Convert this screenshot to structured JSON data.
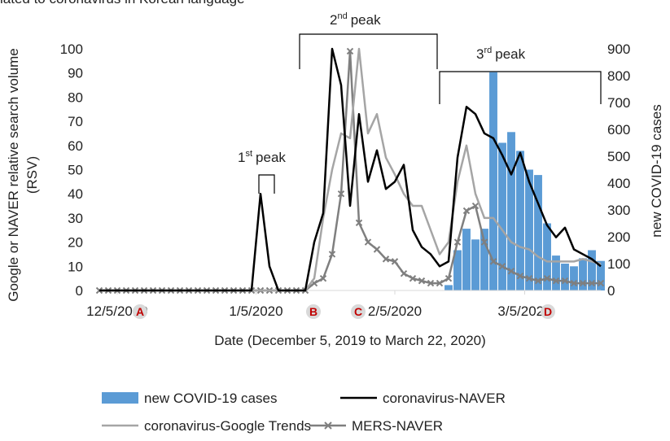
{
  "chart_data": {
    "type": "combo",
    "title": "lated to coronavirus in Korean language",
    "x_label": "Date (December 5, 2019 to March 22, 2020)",
    "y_label": [
      "Google or NAVER relative search volume",
      "(RSV)"
    ],
    "y2_label": "new COVID-19 cases",
    "x": [
      -4,
      -2,
      0,
      2,
      4,
      6,
      8,
      10,
      12,
      14,
      16,
      18,
      20,
      22,
      24,
      26,
      28,
      30,
      32,
      34,
      36,
      38,
      40,
      42,
      44,
      46,
      48,
      50,
      52,
      54,
      56,
      58,
      60,
      62,
      64,
      66,
      68,
      70,
      72,
      74,
      76,
      78,
      80,
      82,
      84,
      86,
      88,
      90,
      92,
      94,
      96,
      98,
      100,
      102,
      104,
      106,
      108
    ],
    "xlim": [
      -4,
      108
    ],
    "xticks": [
      {
        "value": 0,
        "label": "12/5/2019"
      },
      {
        "value": 31,
        "label": "1/5/2020"
      },
      {
        "value": 62,
        "label": "2/5/2020"
      },
      {
        "value": 91,
        "label": "3/5/2020"
      }
    ],
    "ylim": [
      0,
      100
    ],
    "yticks": [
      0,
      10,
      20,
      30,
      40,
      50,
      60,
      70,
      80,
      90,
      100
    ],
    "y2lim": [
      0,
      900
    ],
    "y2ticks": [
      0,
      100,
      200,
      300,
      400,
      500,
      600,
      700,
      800,
      900
    ],
    "series": [
      {
        "name": "new COVID-19 cases",
        "type": "bar",
        "axis": "y2",
        "color": "#5b9bd5",
        "values": [
          0,
          0,
          0,
          0,
          0,
          0,
          0,
          0,
          0,
          0,
          0,
          0,
          0,
          0,
          0,
          0,
          0,
          0,
          0,
          0,
          0,
          0,
          0,
          0,
          0,
          0,
          0,
          0,
          0,
          0,
          0,
          0,
          0,
          0,
          0,
          0,
          0,
          0,
          0,
          20,
          150,
          230,
          190,
          230,
          813,
          550,
          590,
          520,
          450,
          430,
          250,
          130,
          100,
          90,
          120,
          150,
          110
        ]
      },
      {
        "name": "coronavirus-NAVER",
        "type": "line",
        "color": "#000000",
        "values": [
          0,
          0,
          0,
          0,
          0,
          0,
          0,
          0,
          0,
          0,
          0,
          0,
          0,
          0,
          0,
          0,
          0,
          0,
          40,
          10,
          0,
          0,
          0,
          0,
          20,
          32,
          100,
          85,
          35,
          73,
          45,
          58,
          42,
          45,
          52,
          25,
          18,
          15,
          10,
          12,
          55,
          76,
          73,
          65,
          63,
          56,
          48,
          57,
          45,
          36,
          27,
          22,
          26,
          17,
          15,
          13,
          10
        ]
      },
      {
        "name": "coronavirus-Google Trends",
        "type": "line",
        "color": "#a5a5a5",
        "values": [
          0,
          0,
          0,
          0,
          0,
          0,
          0,
          0,
          0,
          0,
          0,
          0,
          0,
          0,
          0,
          0,
          0,
          0,
          0,
          0,
          0,
          0,
          0,
          0,
          5,
          30,
          50,
          65,
          63,
          100,
          65,
          73,
          55,
          48,
          40,
          35,
          35,
          25,
          15,
          20,
          45,
          60,
          40,
          30,
          30,
          25,
          20,
          18,
          17,
          14,
          12,
          12,
          12,
          12,
          13,
          12,
          11
        ]
      },
      {
        "name": "MERS-NAVER",
        "type": "line",
        "color": "#7f7f7f",
        "marker": "x",
        "values": [
          0,
          0,
          0,
          0,
          0,
          0,
          0,
          0,
          0,
          0,
          0,
          0,
          0,
          0,
          0,
          0,
          0,
          0,
          0,
          0,
          0,
          0,
          0,
          0,
          3,
          5,
          15,
          40,
          99,
          28,
          20,
          17,
          13,
          12,
          7,
          5,
          4,
          3,
          3,
          5,
          20,
          33,
          35,
          20,
          12,
          10,
          8,
          6,
          5,
          4,
          5,
          4,
          4,
          3,
          3,
          3,
          3
        ]
      }
    ],
    "annotations": [
      {
        "num": "1",
        "sup": "st",
        "rest": "peak"
      },
      {
        "num": "2",
        "sup": "nd",
        "rest": "peak"
      },
      {
        "num": "3",
        "sup": "rd",
        "rest": "peak"
      }
    ],
    "markers": [
      "A",
      "B",
      "C",
      "D"
    ]
  }
}
